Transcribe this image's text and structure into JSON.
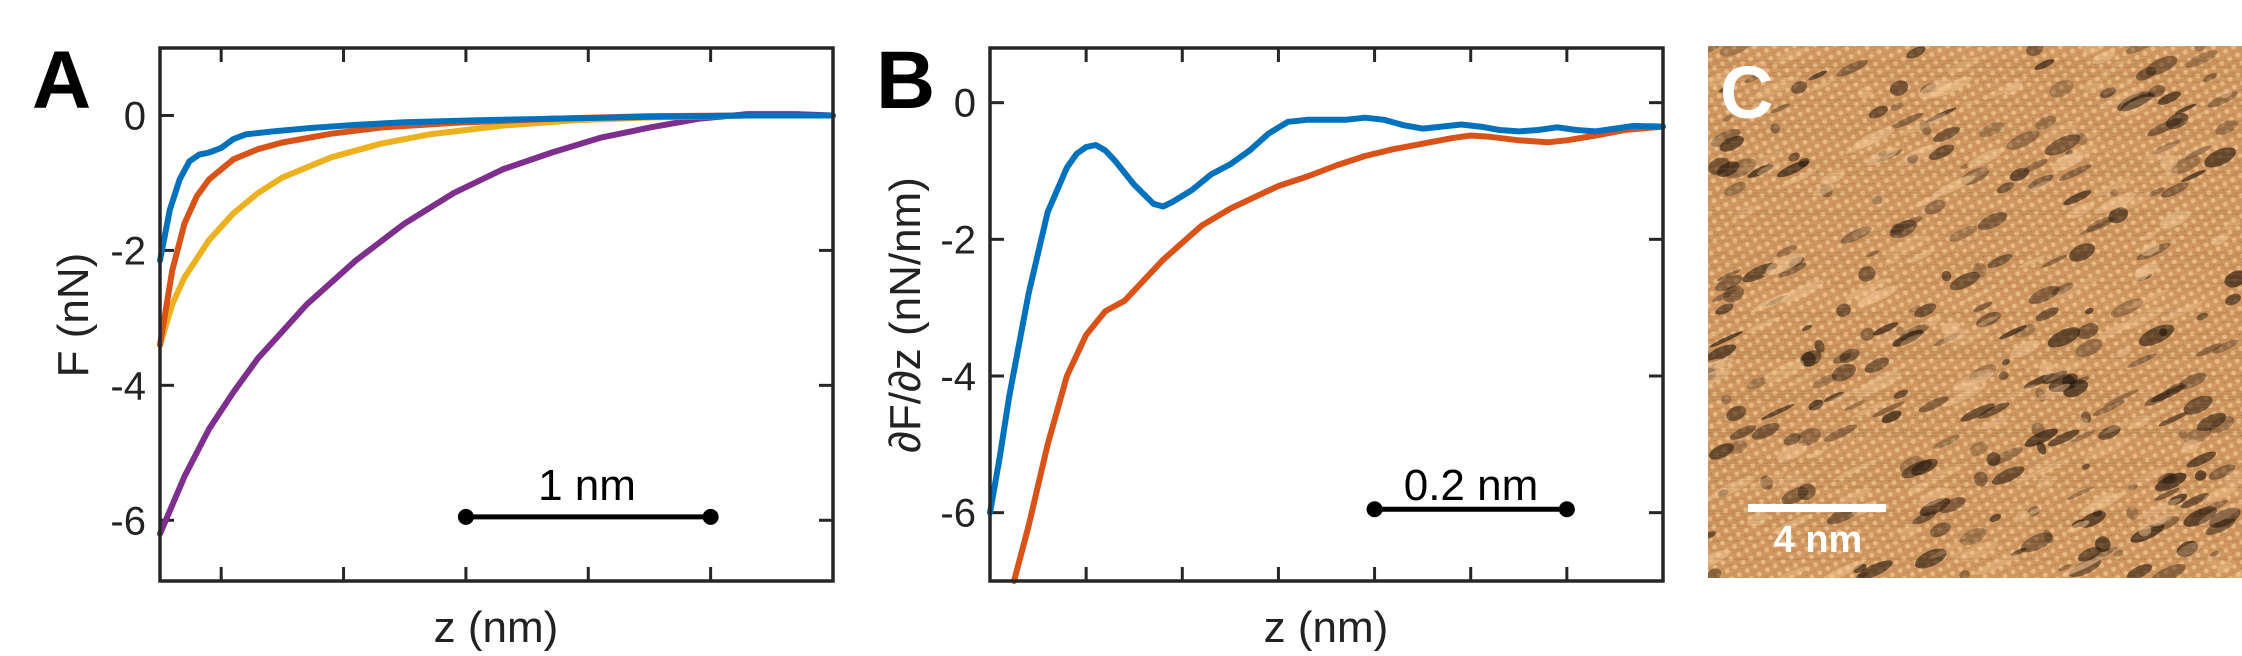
{
  "chart_data": [
    {
      "panel": "A",
      "type": "line",
      "title": "",
      "xlabel": "z (nm)",
      "ylabel": "F (nN)",
      "xlim": [
        0,
        2.75
      ],
      "ylim": [
        -6.9,
        1.0
      ],
      "yticks": [
        0,
        -2,
        -4,
        -6
      ],
      "ytick_labels": [
        "0",
        "-2",
        "-4",
        "-6"
      ],
      "xticks": [
        0.25,
        0.75,
        1.25,
        1.75,
        2.25
      ],
      "scale_bar": {
        "label": "1 nm",
        "from": 1.25,
        "to": 2.25,
        "y": -5.95
      },
      "series": [
        {
          "name": "blue",
          "color": "#0072BD",
          "x": [
            0,
            0.04,
            0.08,
            0.12,
            0.16,
            0.2,
            0.25,
            0.3,
            0.35,
            0.45,
            0.6,
            0.8,
            1.0,
            1.3,
            1.6,
            2.0,
            2.4,
            2.75
          ],
          "y": [
            -2.15,
            -1.4,
            -0.95,
            -0.68,
            -0.58,
            -0.55,
            -0.48,
            -0.35,
            -0.28,
            -0.24,
            -0.19,
            -0.14,
            -0.1,
            -0.07,
            -0.05,
            -0.02,
            0.0,
            0.0
          ]
        },
        {
          "name": "orange",
          "color": "#D95319",
          "x": [
            0,
            0.05,
            0.1,
            0.15,
            0.2,
            0.3,
            0.4,
            0.5,
            0.7,
            0.9,
            1.2,
            1.6,
            2.0,
            2.4,
            2.75
          ],
          "y": [
            -3.4,
            -2.3,
            -1.6,
            -1.2,
            -0.95,
            -0.65,
            -0.5,
            -0.4,
            -0.27,
            -0.18,
            -0.11,
            -0.05,
            -0.01,
            0.0,
            0.0
          ]
        },
        {
          "name": "yellow",
          "color": "#EDB120",
          "x": [
            0,
            0.05,
            0.1,
            0.2,
            0.3,
            0.4,
            0.5,
            0.7,
            0.9,
            1.1,
            1.4,
            1.7,
            2.0,
            2.4,
            2.75
          ],
          "y": [
            -3.4,
            -2.8,
            -2.4,
            -1.85,
            -1.45,
            -1.15,
            -0.92,
            -0.62,
            -0.42,
            -0.28,
            -0.15,
            -0.07,
            -0.03,
            0.0,
            0.0
          ]
        },
        {
          "name": "purple",
          "color": "#7E2F8E",
          "x": [
            0,
            0.1,
            0.2,
            0.3,
            0.4,
            0.5,
            0.6,
            0.8,
            1.0,
            1.2,
            1.4,
            1.6,
            1.8,
            2.0,
            2.2,
            2.4,
            2.6,
            2.75
          ],
          "y": [
            -6.2,
            -5.35,
            -4.65,
            -4.1,
            -3.6,
            -3.2,
            -2.8,
            -2.15,
            -1.6,
            -1.15,
            -0.8,
            -0.55,
            -0.33,
            -0.18,
            -0.05,
            0.02,
            0.02,
            0.0
          ]
        }
      ]
    },
    {
      "panel": "B",
      "type": "line",
      "title": "",
      "xlabel": "z (nm)",
      "ylabel": "∂F/∂z (nN/nm)",
      "xlim": [
        0,
        0.7
      ],
      "ylim": [
        -7.0,
        0.8
      ],
      "yticks": [
        0,
        -2,
        -4,
        -6
      ],
      "ytick_labels": [
        "0",
        "-2",
        "-4",
        "-6"
      ],
      "xticks": [
        0.1,
        0.2,
        0.3,
        0.4,
        0.5,
        0.6
      ],
      "scale_bar": {
        "label": "0.2 nm",
        "from": 0.4,
        "to": 0.6,
        "y": -5.95
      },
      "series": [
        {
          "name": "blue",
          "color": "#0072BD",
          "x": [
            0,
            0.01,
            0.02,
            0.04,
            0.06,
            0.08,
            0.09,
            0.1,
            0.11,
            0.12,
            0.13,
            0.15,
            0.17,
            0.18,
            0.19,
            0.21,
            0.23,
            0.25,
            0.27,
            0.29,
            0.31,
            0.33,
            0.35,
            0.37,
            0.39,
            0.41,
            0.43,
            0.45,
            0.47,
            0.49,
            0.51,
            0.53,
            0.55,
            0.57,
            0.59,
            0.61,
            0.63,
            0.65,
            0.67,
            0.7
          ],
          "y": [
            -6.0,
            -5.2,
            -4.3,
            -2.8,
            -1.6,
            -0.95,
            -0.75,
            -0.65,
            -0.62,
            -0.7,
            -0.85,
            -1.2,
            -1.48,
            -1.52,
            -1.45,
            -1.28,
            -1.05,
            -0.9,
            -0.7,
            -0.45,
            -0.28,
            -0.25,
            -0.25,
            -0.25,
            -0.22,
            -0.25,
            -0.33,
            -0.38,
            -0.35,
            -0.32,
            -0.35,
            -0.4,
            -0.42,
            -0.4,
            -0.36,
            -0.4,
            -0.42,
            -0.38,
            -0.34,
            -0.35
          ]
        },
        {
          "name": "orange",
          "color": "#D95319",
          "x": [
            0.025,
            0.04,
            0.06,
            0.08,
            0.1,
            0.12,
            0.14,
            0.16,
            0.18,
            0.2,
            0.22,
            0.25,
            0.28,
            0.3,
            0.33,
            0.36,
            0.39,
            0.42,
            0.45,
            0.48,
            0.5,
            0.52,
            0.55,
            0.58,
            0.6,
            0.63,
            0.66,
            0.7
          ],
          "y": [
            -7.0,
            -6.2,
            -5.0,
            -4.0,
            -3.4,
            -3.05,
            -2.9,
            -2.6,
            -2.3,
            -2.05,
            -1.8,
            -1.55,
            -1.35,
            -1.22,
            -1.08,
            -0.92,
            -0.78,
            -0.68,
            -0.6,
            -0.52,
            -0.48,
            -0.5,
            -0.55,
            -0.58,
            -0.55,
            -0.48,
            -0.4,
            -0.35
          ]
        }
      ]
    }
  ],
  "panels": {
    "a_letter": "A",
    "b_letter": "B",
    "c_letter": "C"
  },
  "image_panel": {
    "scale_label": "4 nm",
    "base_color": "#D6A06A",
    "dark_color": "#2A1A0E",
    "light_color": "#F4C896"
  }
}
